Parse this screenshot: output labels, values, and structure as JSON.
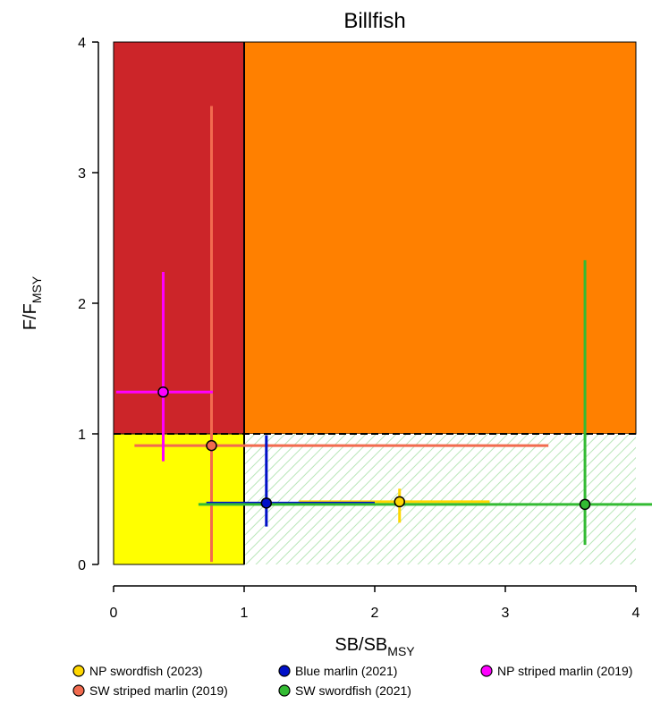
{
  "chart_data": {
    "type": "scatter",
    "title": "Billfish",
    "xlabel": {
      "main": "SB/SB",
      "sub": "MSY"
    },
    "ylabel": {
      "main": "F/F",
      "sub": "MSY"
    },
    "xlim": [
      0,
      4
    ],
    "ylim": [
      0,
      4
    ],
    "xticks": [
      "0",
      "1",
      "2",
      "3",
      "4"
    ],
    "yticks": [
      "0",
      "1",
      "2",
      "3",
      "4"
    ],
    "reference_lines": {
      "x": 1,
      "y": 1
    },
    "zones": [
      {
        "name": "overfished-and-overfishing",
        "x": [
          0,
          1
        ],
        "y": [
          1,
          4
        ],
        "color": "#cc2529"
      },
      {
        "name": "overfishing",
        "x": [
          1,
          4
        ],
        "y": [
          1,
          4
        ],
        "color": "#ff8000"
      },
      {
        "name": "overfished",
        "x": [
          0,
          1
        ],
        "y": [
          0,
          1
        ],
        "color": "#ffff00"
      },
      {
        "name": "healthy",
        "x": [
          1,
          4
        ],
        "y": [
          0,
          1
        ],
        "color": "#dff5df",
        "pattern": "hatched"
      }
    ],
    "series": [
      {
        "name": "NP swordfish (2023)",
        "color": "#ffd700",
        "x": 2.19,
        "y": 0.48,
        "x_range": [
          1.42,
          2.88
        ],
        "y_range": [
          0.32,
          0.58
        ]
      },
      {
        "name": "SW striped marlin (2019)",
        "color": "#f26b4f",
        "x": 0.75,
        "y": 0.91,
        "x_range": [
          0.16,
          3.33
        ],
        "y_range": [
          0.02,
          3.51
        ]
      },
      {
        "name": "Blue marlin (2021)",
        "color": "#0010c8",
        "x": 1.17,
        "y": 0.47,
        "x_range": [
          0.71,
          2.0
        ],
        "y_range": [
          0.29,
          0.99
        ]
      },
      {
        "name": "SW swordfish (2021)",
        "color": "#33bb33",
        "x": 3.61,
        "y": 0.46,
        "x_range": [
          0.65,
          4.13
        ],
        "y_range": [
          0.15,
          2.33
        ]
      },
      {
        "name": "NP striped marlin (2019)",
        "color": "#ff00ff",
        "x": 0.38,
        "y": 1.32,
        "x_range": [
          0.02,
          0.76
        ],
        "y_range": [
          0.79,
          2.24
        ]
      }
    ],
    "legend_position": "bottom"
  }
}
